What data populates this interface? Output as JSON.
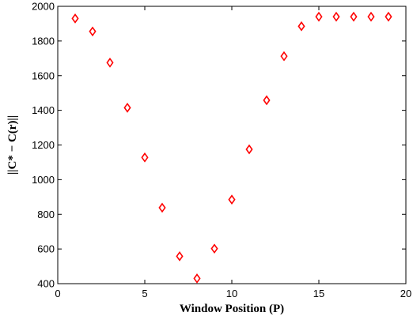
{
  "chart_data": {
    "type": "scatter",
    "title": "",
    "xlabel": "Window Position (P)",
    "ylabel": "||C* − C(r)||",
    "xlim": [
      0,
      20
    ],
    "ylim": [
      400,
      2000
    ],
    "x_ticks": [
      0,
      5,
      10,
      15,
      20
    ],
    "y_ticks": [
      400,
      600,
      800,
      1000,
      1200,
      1400,
      1600,
      1800,
      2000
    ],
    "x_tick_labels": [
      "0",
      "5",
      "10",
      "15",
      "20"
    ],
    "y_tick_labels": [
      "400",
      "600",
      "800",
      "1000",
      "1200",
      "1400",
      "1600",
      "1800",
      "2000"
    ],
    "grid": false,
    "series": [
      {
        "marker": "diamond",
        "color": "#ff0000",
        "x": [
          1,
          2,
          3,
          4,
          5,
          6,
          7,
          8,
          9,
          10,
          11,
          12,
          13,
          14,
          15,
          16,
          17,
          18,
          19
        ],
        "y": [
          1930,
          1855,
          1675,
          1415,
          1128,
          838,
          558,
          430,
          602,
          885,
          1175,
          1458,
          1712,
          1885,
          1940,
          1940,
          1940,
          1940,
          1940
        ]
      }
    ]
  }
}
